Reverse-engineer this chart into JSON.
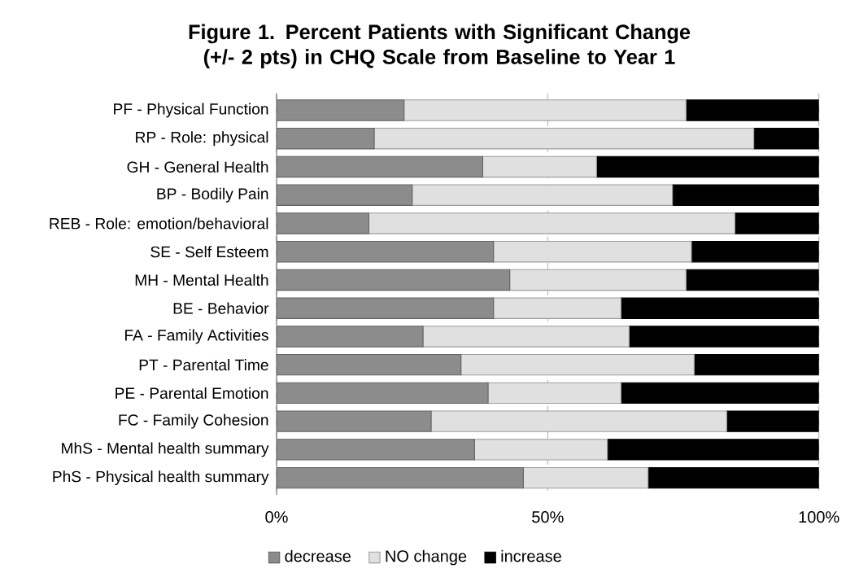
{
  "chart_data": {
    "type": "bar",
    "orientation": "horizontal",
    "stacked": true,
    "title": "Figure 1. Percent Patients with Significant Change (+/- 2 pts) in CHQ Scale from Baseline to Year 1",
    "categories": [
      "PF - Physical Function",
      "RP - Role: physical",
      "GH - General Health",
      "BP - Bodily Pain",
      "REB - Role: emotion/behavioral",
      "SE - Self Esteem",
      "MH - Mental Health",
      "BE - Behavior",
      "FA - Family Activities",
      "PT - Parental Time",
      "PE - Parental Emotion",
      "FC - Family Cohesion",
      "MhS - Mental health summary",
      "PhS - Physical health summary"
    ],
    "series": [
      {
        "name": "decrease",
        "color": "#8c8c8c",
        "values": [
          23.5,
          18,
          38,
          25,
          17,
          40,
          43,
          40,
          27,
          34,
          39,
          28.5,
          36.5,
          45.5
        ]
      },
      {
        "name": "NO change",
        "color": "#e0e0e0",
        "values": [
          52,
          70,
          21,
          48,
          67.5,
          36.5,
          32.5,
          23.5,
          38,
          43,
          24.5,
          54.5,
          24.5,
          23
        ]
      },
      {
        "name": "increase",
        "color": "#000000",
        "values": [
          24.5,
          12,
          41,
          27,
          15.5,
          23.5,
          24.5,
          36.5,
          35,
          23,
          36.5,
          17,
          39,
          31.5
        ]
      }
    ],
    "xlim": [
      0,
      100
    ],
    "xticks": [
      {
        "value": 0,
        "label": "0%"
      },
      {
        "value": 50,
        "label": "50%"
      },
      {
        "value": 100,
        "label": "100%"
      }
    ],
    "grid": "x",
    "legend": "bottom"
  }
}
